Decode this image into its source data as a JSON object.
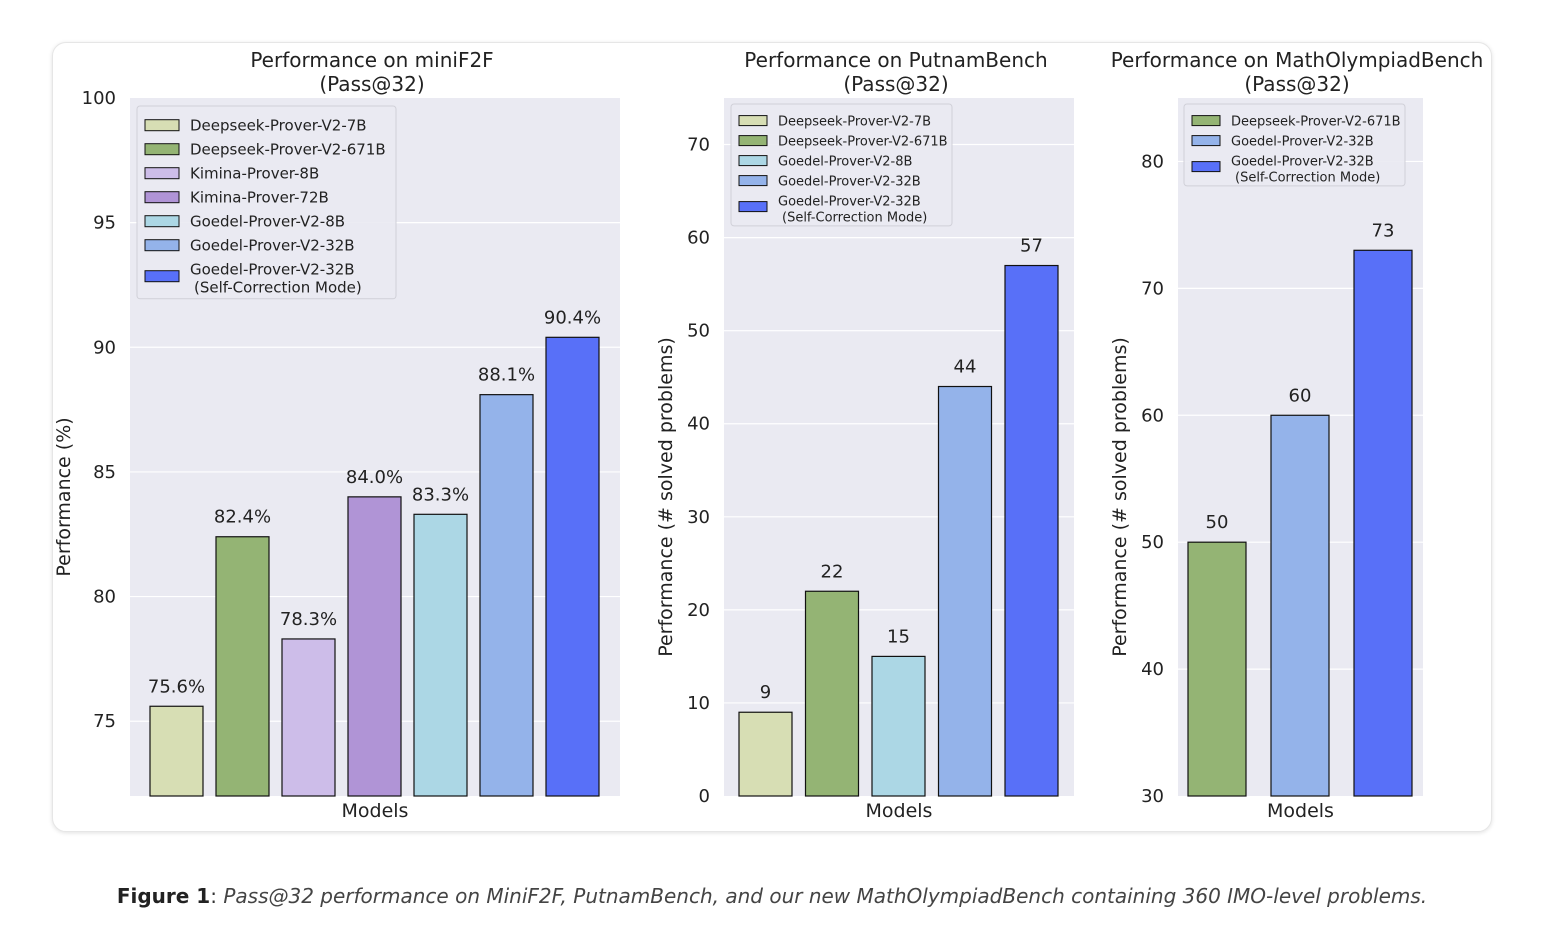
{
  "chart_data": [
    {
      "type": "bar",
      "title": "Performance on miniF2F",
      "subtitle": "(Pass@32)",
      "xlabel": "Models",
      "ylabel": "Performance (%)",
      "ylim": [
        72,
        100
      ],
      "yticks": [
        75,
        80,
        85,
        90,
        95,
        100
      ],
      "grid": true,
      "legend_position": "top-left",
      "categories": [
        "Deepseek-Prover-V2-7B",
        "Deepseek-Prover-V2-671B",
        "Kimina-Prover-8B",
        "Kimina-Prover-72B",
        "Goedel-Prover-V2-8B",
        "Goedel-Prover-V2-32B",
        "Goedel-Prover-V2-32B (Self-Correction Mode)"
      ],
      "legend": [
        [
          "Deepseek-Prover-V2-7B"
        ],
        [
          "Deepseek-Prover-V2-671B"
        ],
        [
          "Kimina-Prover-8B"
        ],
        [
          "Kimina-Prover-72B"
        ],
        [
          "Goedel-Prover-V2-8B"
        ],
        [
          "Goedel-Prover-V2-32B"
        ],
        [
          "Goedel-Prover-V2-32B",
          "(Self-Correction Mode)"
        ]
      ],
      "values": [
        75.6,
        82.4,
        78.3,
        84.0,
        83.3,
        88.1,
        90.4
      ],
      "labels": [
        "75.6%",
        "82.4%",
        "78.3%",
        "84.0%",
        "83.3%",
        "88.1%",
        "90.4%"
      ],
      "colors": [
        "#d7deb4",
        "#94b474",
        "#cdbde9",
        "#b094d6",
        "#acd7e5",
        "#94b3ea",
        "#5870f8"
      ]
    },
    {
      "type": "bar",
      "title": "Performance on PutnamBench",
      "subtitle": "(Pass@32)",
      "xlabel": "Models",
      "ylabel": "Performance (# solved problems)",
      "ylim": [
        0,
        75
      ],
      "yticks": [
        0,
        10,
        20,
        30,
        40,
        50,
        60,
        70
      ],
      "grid": true,
      "legend_position": "top-left",
      "categories": [
        "Deepseek-Prover-V2-7B",
        "Deepseek-Prover-V2-671B",
        "Goedel-Prover-V2-8B",
        "Goedel-Prover-V2-32B",
        "Goedel-Prover-V2-32B (Self-Correction Mode)"
      ],
      "legend": [
        [
          "Deepseek-Prover-V2-7B"
        ],
        [
          "Deepseek-Prover-V2-671B"
        ],
        [
          "Goedel-Prover-V2-8B"
        ],
        [
          "Goedel-Prover-V2-32B"
        ],
        [
          "Goedel-Prover-V2-32B",
          "(Self-Correction Mode)"
        ]
      ],
      "values": [
        9,
        22,
        15,
        44,
        57
      ],
      "labels": [
        "9",
        "22",
        "15",
        "44",
        "57"
      ],
      "colors": [
        "#d7deb4",
        "#94b474",
        "#acd7e5",
        "#94b3ea",
        "#5870f8"
      ]
    },
    {
      "type": "bar",
      "title": "Performance on MathOlympiadBench",
      "subtitle": "(Pass@32)",
      "xlabel": "Models",
      "ylabel": "Performance (# solved problems)",
      "ylim": [
        30,
        85
      ],
      "yticks": [
        30,
        40,
        50,
        60,
        70,
        80
      ],
      "grid": true,
      "legend_position": "top-left",
      "categories": [
        "Deepseek-Prover-V2-671B",
        "Goedel-Prover-V2-32B",
        "Goedel-Prover-V2-32B (Self-Correction Mode)"
      ],
      "legend": [
        [
          "Deepseek-Prover-V2-671B"
        ],
        [
          "Goedel-Prover-V2-32B"
        ],
        [
          "Goedel-Prover-V2-32B",
          "(Self-Correction Mode)"
        ]
      ],
      "values": [
        50,
        60,
        73
      ],
      "labels": [
        "50",
        "60",
        "73"
      ],
      "colors": [
        "#94b474",
        "#94b3ea",
        "#5870f8"
      ]
    }
  ],
  "caption": {
    "label": "Figure 1",
    "separator": ": ",
    "text": "Pass@32 performance on MiniF2F, PutnamBench, and our new MathOlympiadBench containing 360 IMO-level problems."
  },
  "colors": {
    "plot_background": "#eaeaf2",
    "gridline": "#ffffff",
    "bar_edge": "#111111"
  }
}
